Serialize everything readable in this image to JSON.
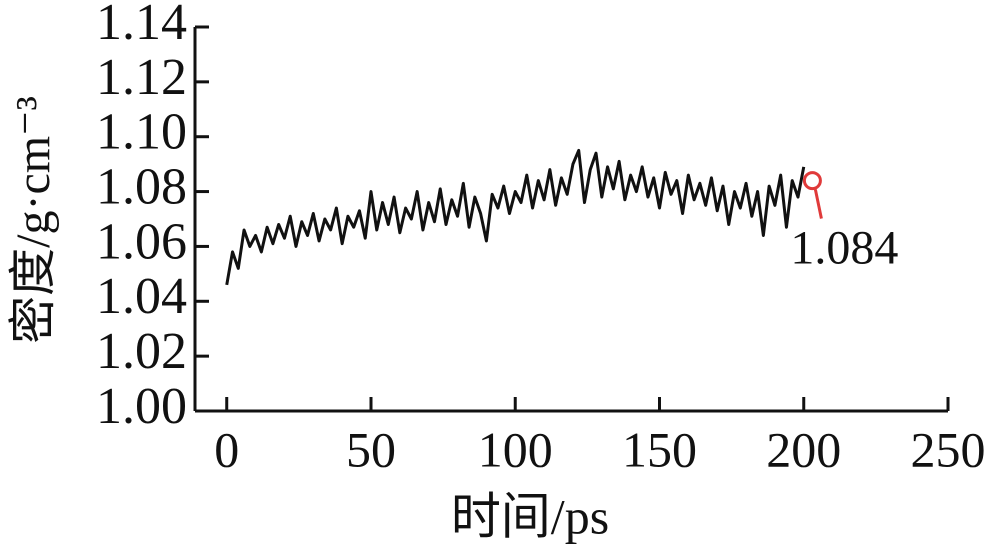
{
  "chart_data": {
    "type": "line",
    "x_label": "时间/ps",
    "y_label": "密度/g·cm⁻³",
    "x": [
      0,
      2,
      4,
      6,
      8,
      10,
      12,
      14,
      16,
      18,
      20,
      22,
      24,
      26,
      28,
      30,
      32,
      34,
      36,
      38,
      40,
      42,
      44,
      46,
      48,
      50,
      52,
      54,
      56,
      58,
      60,
      62,
      64,
      66,
      68,
      70,
      72,
      74,
      76,
      78,
      80,
      82,
      84,
      86,
      88,
      90,
      92,
      94,
      96,
      98,
      100,
      102,
      104,
      106,
      108,
      110,
      112,
      114,
      116,
      118,
      120,
      122,
      124,
      126,
      128,
      130,
      132,
      134,
      136,
      138,
      140,
      142,
      144,
      146,
      148,
      150,
      152,
      154,
      156,
      158,
      160,
      162,
      164,
      166,
      168,
      170,
      172,
      174,
      176,
      178,
      180,
      182,
      184,
      186,
      188,
      190,
      192,
      194,
      196,
      198,
      200
    ],
    "values": [
      1.046,
      1.058,
      1.052,
      1.066,
      1.06,
      1.064,
      1.058,
      1.067,
      1.061,
      1.068,
      1.063,
      1.071,
      1.06,
      1.069,
      1.064,
      1.072,
      1.062,
      1.07,
      1.066,
      1.074,
      1.061,
      1.071,
      1.067,
      1.073,
      1.063,
      1.08,
      1.066,
      1.076,
      1.068,
      1.078,
      1.065,
      1.074,
      1.07,
      1.08,
      1.066,
      1.076,
      1.069,
      1.081,
      1.068,
      1.077,
      1.071,
      1.083,
      1.067,
      1.078,
      1.072,
      1.062,
      1.079,
      1.074,
      1.082,
      1.072,
      1.08,
      1.076,
      1.086,
      1.074,
      1.084,
      1.077,
      1.088,
      1.075,
      1.085,
      1.079,
      1.09,
      1.095,
      1.076,
      1.088,
      1.094,
      1.078,
      1.089,
      1.081,
      1.091,
      1.077,
      1.086,
      1.08,
      1.089,
      1.078,
      1.085,
      1.074,
      1.087,
      1.079,
      1.084,
      1.072,
      1.086,
      1.077,
      1.083,
      1.075,
      1.085,
      1.073,
      1.082,
      1.068,
      1.08,
      1.074,
      1.083,
      1.071,
      1.08,
      1.064,
      1.082,
      1.075,
      1.086,
      1.067,
      1.084,
      1.078,
      1.089
    ],
    "color": "#111111",
    "xlim": [
      -11,
      250
    ],
    "xticks": [
      0,
      50,
      100,
      150,
      200,
      250
    ],
    "ylim": [
      1.0,
      1.14
    ],
    "yticks": [
      {
        "value": 1.0,
        "label": "1.00"
      },
      1.02,
      1.04,
      1.06,
      1.08,
      {
        "value": 1.1,
        "label": "1.10"
      },
      1.12,
      1.14
    ],
    "annotations": [
      {
        "text": "1.084",
        "x": 203,
        "y": 1.084,
        "color": "#e03a3a"
      }
    ]
  }
}
